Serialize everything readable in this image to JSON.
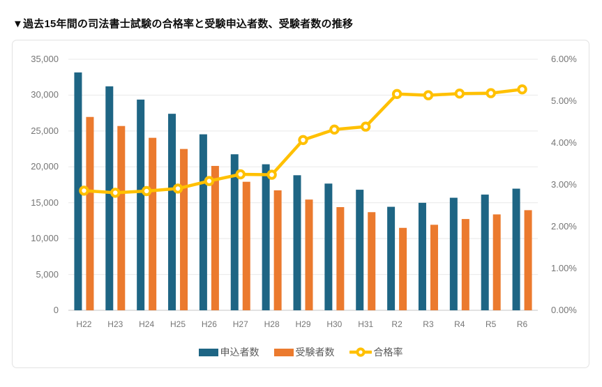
{
  "chart_data": {
    "type": "combo bar+line",
    "title": "▼過去15年間の司法書士試験の合格率と受験申込者数、受験者数の推移",
    "categories": [
      "H22",
      "H23",
      "H24",
      "H25",
      "H26",
      "H27",
      "H28",
      "H29",
      "H30",
      "H31",
      "R2",
      "R3",
      "R4",
      "R5",
      "R6"
    ],
    "series": [
      {
        "name": "申込者数",
        "type": "bar",
        "axis": "left",
        "color": "#1E6584",
        "values": [
          33166,
          31228,
          29379,
          27400,
          24538,
          21754,
          20360,
          18831,
          17668,
          16811,
          14431,
          14988,
          15693,
          16133,
          16960
        ]
      },
      {
        "name": "受験者数",
        "type": "bar",
        "axis": "left",
        "color": "#EB7A2E",
        "values": [
          26958,
          25696,
          24048,
          22494,
          20130,
          17920,
          16725,
          15440,
          14387,
          13683,
          11494,
          11925,
          12727,
          13372,
          13960
        ]
      },
      {
        "name": "合格率",
        "type": "line",
        "axis": "right",
        "unit": "%",
        "color": "#FFC000",
        "values": [
          2.86,
          2.81,
          2.85,
          2.91,
          3.09,
          3.25,
          3.24,
          4.07,
          4.32,
          4.39,
          5.17,
          5.14,
          5.18,
          5.19,
          5.28
        ]
      }
    ],
    "left_axis": {
      "min": 0,
      "max": 35000,
      "step": 5000,
      "tick_values": [
        35000,
        30000,
        25000,
        20000,
        15000,
        10000,
        5000,
        0
      ],
      "tick_labels": [
        "35,000",
        "30,000",
        "25,000",
        "20,000",
        "15,000",
        "10,000",
        "5,000",
        "0"
      ]
    },
    "right_axis": {
      "min": 0,
      "max": 6,
      "step": 1,
      "tick_values": [
        6,
        5,
        4,
        3,
        2,
        1,
        0
      ],
      "tick_labels": [
        "6.00%",
        "5.00%",
        "4.00%",
        "3.00%",
        "2.00%",
        "1.00%",
        "0.00%"
      ]
    },
    "legend_position": "bottom",
    "grid": "horizontal"
  },
  "colors": {
    "bar_applicants": "#1E6584",
    "bar_examinees": "#EB7A2E",
    "line_pass_rate": "#FFC000",
    "gridline": "#E8E8E8",
    "axis_baseline": "#C6C6C6",
    "tick_text": "#757575",
    "legend_text": "#595959",
    "card_border": "#E2E2E2",
    "background": "#FFFFFF"
  }
}
